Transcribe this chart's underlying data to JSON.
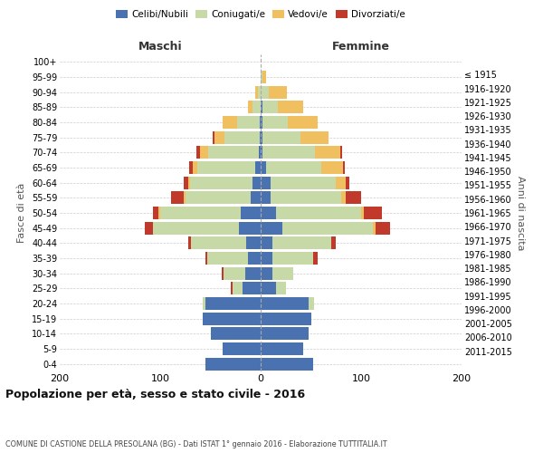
{
  "age_groups": [
    "0-4",
    "5-9",
    "10-14",
    "15-19",
    "20-24",
    "25-29",
    "30-34",
    "35-39",
    "40-44",
    "45-49",
    "50-54",
    "55-59",
    "60-64",
    "65-69",
    "70-74",
    "75-79",
    "80-84",
    "85-89",
    "90-94",
    "95-99",
    "100+"
  ],
  "birth_years": [
    "2011-2015",
    "2006-2010",
    "2001-2005",
    "1996-2000",
    "1991-1995",
    "1986-1990",
    "1981-1985",
    "1976-1980",
    "1971-1975",
    "1966-1970",
    "1961-1965",
    "1956-1960",
    "1951-1955",
    "1946-1950",
    "1941-1945",
    "1936-1940",
    "1931-1935",
    "1926-1930",
    "1921-1925",
    "1916-1920",
    "≤ 1915"
  ],
  "males": {
    "celibi": [
      55,
      38,
      50,
      58,
      55,
      18,
      15,
      13,
      14,
      22,
      20,
      10,
      8,
      5,
      2,
      1,
      1,
      0,
      0,
      0,
      0
    ],
    "coniugati": [
      0,
      0,
      0,
      0,
      3,
      10,
      22,
      40,
      55,
      85,
      80,
      65,
      62,
      58,
      50,
      35,
      22,
      8,
      3,
      0,
      0
    ],
    "vedovi": [
      0,
      0,
      0,
      0,
      0,
      0,
      0,
      0,
      0,
      0,
      2,
      2,
      2,
      5,
      8,
      10,
      15,
      5,
      2,
      0,
      0
    ],
    "divorziati": [
      0,
      0,
      0,
      0,
      0,
      2,
      2,
      2,
      3,
      8,
      5,
      12,
      5,
      3,
      4,
      2,
      0,
      0,
      0,
      0,
      0
    ]
  },
  "females": {
    "nubili": [
      52,
      42,
      48,
      50,
      48,
      15,
      12,
      12,
      12,
      22,
      15,
      10,
      10,
      5,
      2,
      2,
      2,
      2,
      0,
      0,
      0
    ],
    "coniugate": [
      0,
      0,
      0,
      0,
      5,
      10,
      20,
      40,
      58,
      90,
      85,
      70,
      65,
      55,
      52,
      38,
      25,
      15,
      8,
      2,
      0
    ],
    "vedove": [
      0,
      0,
      0,
      0,
      0,
      0,
      0,
      0,
      0,
      2,
      3,
      5,
      10,
      22,
      25,
      28,
      30,
      25,
      18,
      3,
      0
    ],
    "divorziate": [
      0,
      0,
      0,
      0,
      0,
      0,
      0,
      5,
      5,
      15,
      18,
      15,
      3,
      2,
      2,
      0,
      0,
      0,
      0,
      0,
      0
    ]
  },
  "colors": {
    "celibi": "#4a72b0",
    "coniugati": "#c8d9a8",
    "vedovi": "#f0c060",
    "divorziati": "#c0392b"
  },
  "xlim": [
    -200,
    200
  ],
  "xticks": [
    -200,
    -100,
    0,
    100,
    200
  ],
  "title": "Popolazione per età, sesso e stato civile - 2016",
  "subtitle": "COMUNE DI CASTIONE DELLA PRESOLANA (BG) - Dati ISTAT 1° gennaio 2016 - Elaborazione TUTTITALIA.IT",
  "ylabel_left": "Fasce di età",
  "ylabel_right": "Anni di nascita",
  "legend_labels": [
    "Celibi/Nubili",
    "Coniugati/e",
    "Vedovi/e",
    "Divorziati/e"
  ],
  "maschi_label": "Maschi",
  "femmine_label": "Femmine"
}
